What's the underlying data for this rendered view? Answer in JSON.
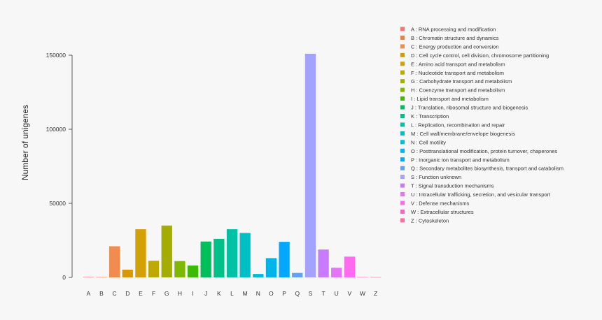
{
  "chart_data": {
    "type": "bar",
    "ylabel": "Number of unigenes",
    "xlabel": "",
    "ylim": [
      0,
      160000
    ],
    "yticks": [
      0,
      50000,
      100000,
      150000
    ],
    "ytick_labels": [
      "0",
      "50000",
      "100000",
      "150000"
    ],
    "grid": false,
    "legend_position": "right",
    "categories": [
      "A",
      "B",
      "C",
      "D",
      "E",
      "F",
      "G",
      "H",
      "I",
      "J",
      "K",
      "L",
      "M",
      "N",
      "O",
      "P",
      "Q",
      "S",
      "T",
      "U",
      "V",
      "W",
      "Z"
    ],
    "values": [
      250,
      200,
      21000,
      5200,
      32500,
      11200,
      35000,
      11000,
      8000,
      24200,
      26000,
      32500,
      30000,
      2300,
      13000,
      24000,
      3000,
      151000,
      18800,
      6500,
      14000,
      200,
      150
    ],
    "colors": [
      "#F8766D",
      "#EE8042",
      "#F08C4F",
      "#D49A00",
      "#D3A106",
      "#BEA900",
      "#A3AD00",
      "#7EB800",
      "#3DBB00",
      "#00BF5A",
      "#00C08A",
      "#00C1A4",
      "#00BFC4",
      "#00BBD7",
      "#00B4E8",
      "#00A9FF",
      "#5EA1F7",
      "#A3A3FF",
      "#C77CFF",
      "#E276F5",
      "#FF6BEF",
      "#FF65C6",
      "#FF6C9E"
    ],
    "legend": [
      "A : RNA processing and modification",
      "B : Chromatin structure and dynamics",
      "C : Energy production and conversion",
      "D : Cell cycle control, cell division, chromosome partitioning",
      "E : Amino acid transport and metabolism",
      "F : Nucleotide transport and metabolism",
      "G : Carbohydrate transport and metabolism",
      "H : Coenzyme transport and metabolism",
      "I : Lipid transport and metabolism",
      "J : Translation, ribosomal structure and biogenesis",
      "K : Transcription",
      "L : Replication, recombination and repair",
      "M : Cell wall/membrane/envelope biogenesis",
      "N : Cell motility",
      "O : Posttranslational modification, protein turnover, chaperones",
      "P : Inorganic ion transport and metabolism",
      "Q : Secondary metabolites biosynthesis, transport and catabolism",
      "S : Function unknown",
      "T : Signal transduction mechanisms",
      "U : Intracellular trafficking, secretion, and vesicular transport",
      "V : Defense mechanisms",
      "W : Extracellular structures",
      "Z : Cytoskeleton"
    ]
  }
}
